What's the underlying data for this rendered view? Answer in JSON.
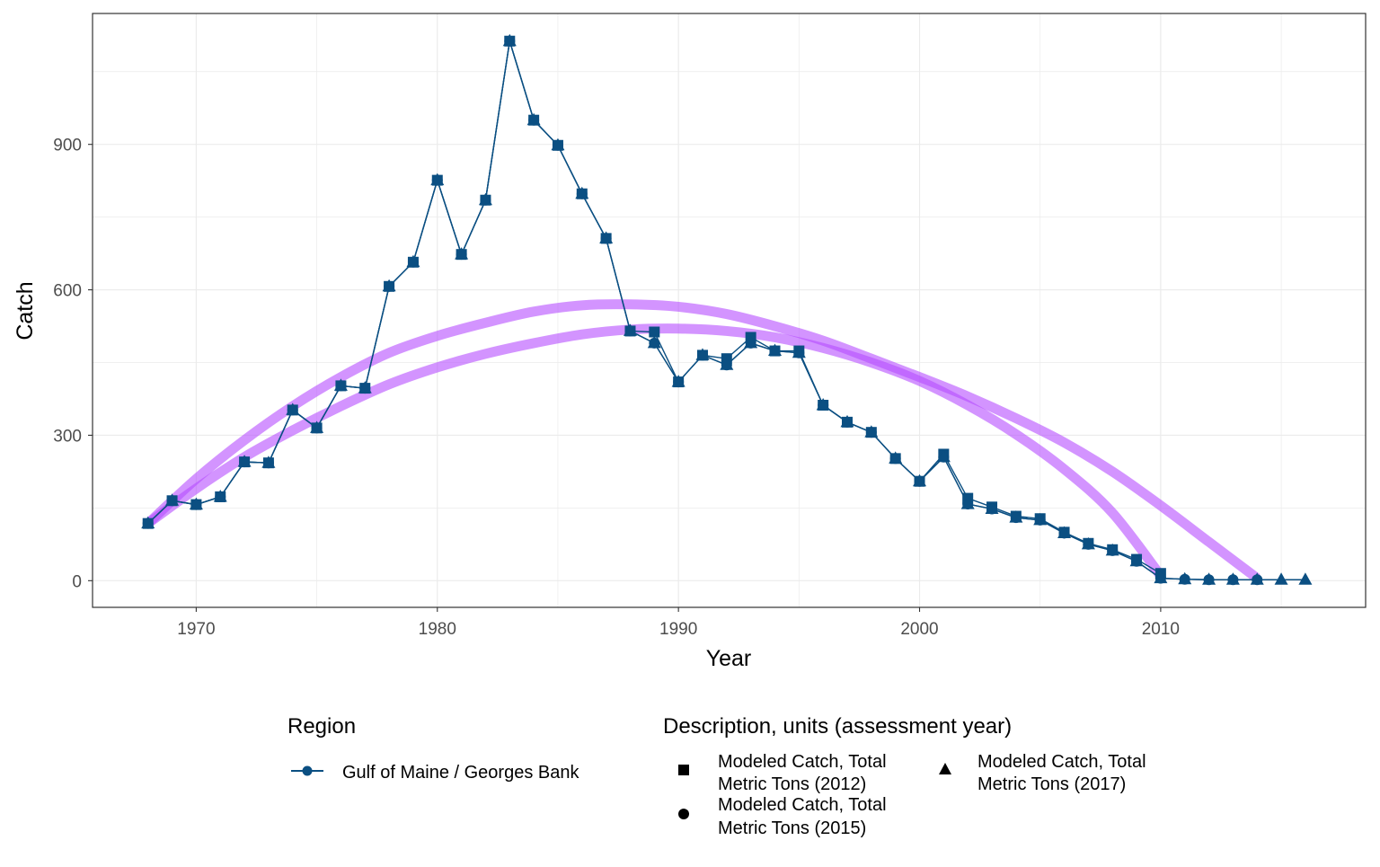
{
  "chart_data": {
    "type": "line",
    "xlabel": "Year",
    "ylabel": "Catch",
    "xlim": [
      1965.7,
      2018.5
    ],
    "ylim": [
      -55,
      1170
    ],
    "x_ticks": [
      1970,
      1980,
      1990,
      2000,
      2010
    ],
    "y_ticks": [
      0,
      300,
      600,
      900
    ],
    "grid": true,
    "colors": {
      "series": "#0b4f82",
      "fit": "#b64dff",
      "grid": "#ebebeb",
      "panel_border": "#333333"
    },
    "series": [
      {
        "name": "Modeled Catch, Total Metric Tons (2012)",
        "marker": "square",
        "points": [
          [
            1968,
            118
          ],
          [
            1969,
            165
          ],
          [
            1970,
            157
          ],
          [
            1971,
            173
          ],
          [
            1972,
            245
          ],
          [
            1973,
            243
          ],
          [
            1974,
            352
          ],
          [
            1975,
            315
          ],
          [
            1976,
            402
          ],
          [
            1977,
            397
          ],
          [
            1978,
            607
          ],
          [
            1979,
            657
          ],
          [
            1980,
            826
          ],
          [
            1981,
            673
          ],
          [
            1982,
            785
          ],
          [
            1983,
            1113
          ],
          [
            1984,
            950
          ],
          [
            1985,
            898
          ],
          [
            1986,
            798
          ],
          [
            1987,
            706
          ],
          [
            1988,
            515
          ],
          [
            1989,
            513
          ],
          [
            1990,
            410
          ],
          [
            1991,
            465
          ],
          [
            1992,
            458
          ],
          [
            1993,
            502
          ],
          [
            1994,
            474
          ],
          [
            1995,
            474
          ],
          [
            1996,
            362
          ],
          [
            1997,
            327
          ],
          [
            1998,
            306
          ],
          [
            1999,
            252
          ],
          [
            2000,
            205
          ],
          [
            2001,
            261
          ],
          [
            2002,
            170
          ],
          [
            2003,
            152
          ],
          [
            2004,
            133
          ],
          [
            2005,
            128
          ],
          [
            2006,
            100
          ],
          [
            2007,
            77
          ],
          [
            2008,
            64
          ],
          [
            2009,
            44
          ],
          [
            2010,
            15
          ]
        ]
      },
      {
        "name": "Modeled Catch, Total Metric Tons (2015)",
        "marker": "circle",
        "points": [
          [
            1968,
            118
          ],
          [
            1969,
            165
          ],
          [
            1970,
            157
          ],
          [
            1971,
            173
          ],
          [
            1972,
            245
          ],
          [
            1973,
            243
          ],
          [
            1974,
            352
          ],
          [
            1975,
            315
          ],
          [
            1976,
            402
          ],
          [
            1977,
            397
          ],
          [
            1978,
            607
          ],
          [
            1979,
            657
          ],
          [
            1980,
            826
          ],
          [
            1981,
            673
          ],
          [
            1982,
            785
          ],
          [
            1983,
            1113
          ],
          [
            1984,
            950
          ],
          [
            1985,
            898
          ],
          [
            1986,
            798
          ],
          [
            1987,
            706
          ],
          [
            1988,
            515
          ],
          [
            1989,
            490
          ],
          [
            1990,
            410
          ],
          [
            1991,
            465
          ],
          [
            1992,
            445
          ],
          [
            1993,
            490
          ],
          [
            1994,
            474
          ],
          [
            1995,
            470
          ],
          [
            1996,
            362
          ],
          [
            1997,
            327
          ],
          [
            1998,
            306
          ],
          [
            1999,
            252
          ],
          [
            2000,
            205
          ],
          [
            2001,
            255
          ],
          [
            2002,
            158
          ],
          [
            2003,
            148
          ],
          [
            2004,
            130
          ],
          [
            2005,
            125
          ],
          [
            2006,
            98
          ],
          [
            2007,
            75
          ],
          [
            2008,
            62
          ],
          [
            2009,
            40
          ],
          [
            2010,
            5
          ],
          [
            2011,
            3
          ],
          [
            2012,
            2
          ],
          [
            2013,
            2
          ],
          [
            2014,
            2
          ]
        ]
      },
      {
        "name": "Modeled Catch, Total Metric Tons (2017)",
        "marker": "triangle",
        "points": [
          [
            1968,
            118
          ],
          [
            1969,
            165
          ],
          [
            1970,
            157
          ],
          [
            1971,
            173
          ],
          [
            1972,
            245
          ],
          [
            1973,
            243
          ],
          [
            1974,
            352
          ],
          [
            1975,
            315
          ],
          [
            1976,
            402
          ],
          [
            1977,
            397
          ],
          [
            1978,
            607
          ],
          [
            1979,
            657
          ],
          [
            1980,
            826
          ],
          [
            1981,
            673
          ],
          [
            1982,
            785
          ],
          [
            1983,
            1113
          ],
          [
            1984,
            950
          ],
          [
            1985,
            898
          ],
          [
            1986,
            798
          ],
          [
            1987,
            706
          ],
          [
            1988,
            515
          ],
          [
            1989,
            490
          ],
          [
            1990,
            410
          ],
          [
            1991,
            465
          ],
          [
            1992,
            445
          ],
          [
            1993,
            490
          ],
          [
            1994,
            474
          ],
          [
            1995,
            470
          ],
          [
            1996,
            362
          ],
          [
            1997,
            327
          ],
          [
            1998,
            306
          ],
          [
            1999,
            252
          ],
          [
            2000,
            205
          ],
          [
            2001,
            255
          ],
          [
            2002,
            158
          ],
          [
            2003,
            148
          ],
          [
            2004,
            130
          ],
          [
            2005,
            125
          ],
          [
            2006,
            98
          ],
          [
            2007,
            75
          ],
          [
            2008,
            62
          ],
          [
            2009,
            40
          ],
          [
            2010,
            5
          ],
          [
            2011,
            3
          ],
          [
            2012,
            2
          ],
          [
            2013,
            2
          ],
          [
            2014,
            2
          ],
          [
            2015,
            2
          ],
          [
            2016,
            2
          ]
        ]
      }
    ],
    "fit_curves": [
      {
        "description": "quadratic fit, 1968-2010",
        "points": [
          [
            1968,
            118
          ],
          [
            1970,
            190
          ],
          [
            1972,
            255
          ],
          [
            1974,
            310
          ],
          [
            1976,
            360
          ],
          [
            1978,
            405
          ],
          [
            1980,
            440
          ],
          [
            1982,
            468
          ],
          [
            1984,
            490
          ],
          [
            1986,
            508
          ],
          [
            1988,
            518
          ],
          [
            1990,
            520
          ],
          [
            1992,
            515
          ],
          [
            1994,
            502
          ],
          [
            1996,
            480
          ],
          [
            1998,
            450
          ],
          [
            2000,
            412
          ],
          [
            2002,
            362
          ],
          [
            2004,
            302
          ],
          [
            2006,
            230
          ],
          [
            2008,
            140
          ],
          [
            2010,
            10
          ]
        ]
      },
      {
        "description": "quadratic fit, 1968-2014",
        "points": [
          [
            1968,
            118
          ],
          [
            1970,
            210
          ],
          [
            1972,
            290
          ],
          [
            1974,
            360
          ],
          [
            1976,
            420
          ],
          [
            1978,
            470
          ],
          [
            1980,
            505
          ],
          [
            1982,
            532
          ],
          [
            1984,
            555
          ],
          [
            1986,
            568
          ],
          [
            1988,
            570
          ],
          [
            1990,
            565
          ],
          [
            1992,
            550
          ],
          [
            1994,
            525
          ],
          [
            1996,
            495
          ],
          [
            1998,
            458
          ],
          [
            2000,
            420
          ],
          [
            2002,
            380
          ],
          [
            2004,
            335
          ],
          [
            2006,
            285
          ],
          [
            2008,
            225
          ],
          [
            2010,
            155
          ],
          [
            2012,
            80
          ],
          [
            2014,
            5
          ]
        ]
      }
    ],
    "legend": {
      "placement": "bottom",
      "region_title": "Region",
      "region_items": [
        "Gulf of Maine / Georges Bank"
      ],
      "description_title": "Description, units (assessment year)",
      "description_items": [
        {
          "line1": "Modeled Catch, Total",
          "line2": "Metric Tons (2012)",
          "marker": "square"
        },
        {
          "line1": "Modeled Catch, Total",
          "line2": "Metric Tons (2015)",
          "marker": "circle"
        },
        {
          "line1": "Modeled Catch, Total",
          "line2": "Metric Tons (2017)",
          "marker": "triangle"
        }
      ]
    }
  }
}
